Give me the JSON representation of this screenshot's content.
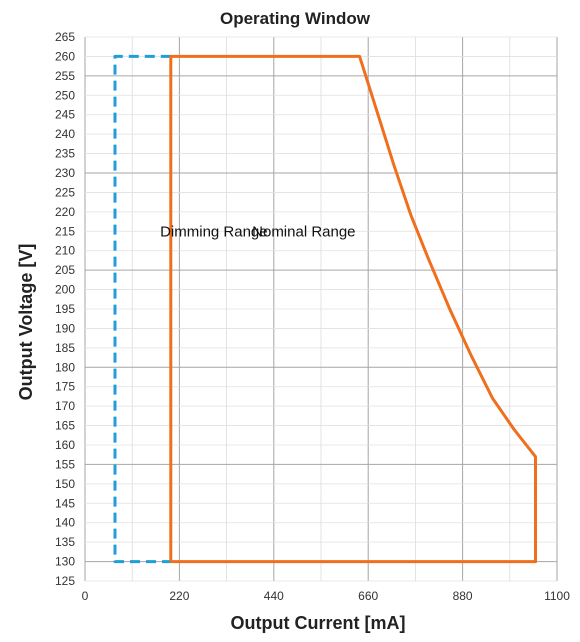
{
  "chart_data": {
    "type": "line",
    "title": "Operating Window",
    "xlabel": "Output Current [mA]",
    "ylabel": "Output Voltage [V]",
    "xlim": [
      0,
      1100
    ],
    "ylim": [
      125,
      265
    ],
    "x_tick_labels": [
      "0",
      "220",
      "440",
      "660",
      "880",
      "1100"
    ],
    "y_tick_labels": [
      "125",
      "130",
      "135",
      "140",
      "145",
      "150",
      "155",
      "160",
      "165",
      "170",
      "175",
      "180",
      "185",
      "190",
      "195",
      "200",
      "205",
      "210",
      "215",
      "220",
      "225",
      "230",
      "235",
      "240",
      "245",
      "250",
      "255",
      "260",
      "265"
    ],
    "grid": true,
    "legend": "none",
    "annotations": [
      {
        "text": "Dimming Range",
        "x": 175,
        "y": 215
      },
      {
        "text": "Nominal Range",
        "x": 510,
        "y": 215
      }
    ],
    "series": [
      {
        "id": "dimming",
        "color": "#1f9fd6",
        "style": "dashed",
        "points": [
          [
            200,
            260
          ],
          [
            70,
            260
          ],
          [
            70,
            130
          ],
          [
            200,
            130
          ]
        ]
      },
      {
        "id": "nominal",
        "color": "#f06e1c",
        "style": "solid",
        "points": [
          [
            200,
            130
          ],
          [
            200,
            260
          ],
          [
            640,
            260
          ],
          [
            680,
            246
          ],
          [
            720,
            232
          ],
          [
            760,
            219
          ],
          [
            800,
            208
          ],
          [
            850,
            195
          ],
          [
            900,
            183
          ],
          [
            950,
            172
          ],
          [
            1000,
            164
          ],
          [
            1050,
            157
          ],
          [
            1050,
            130
          ],
          [
            200,
            130
          ]
        ]
      }
    ]
  }
}
